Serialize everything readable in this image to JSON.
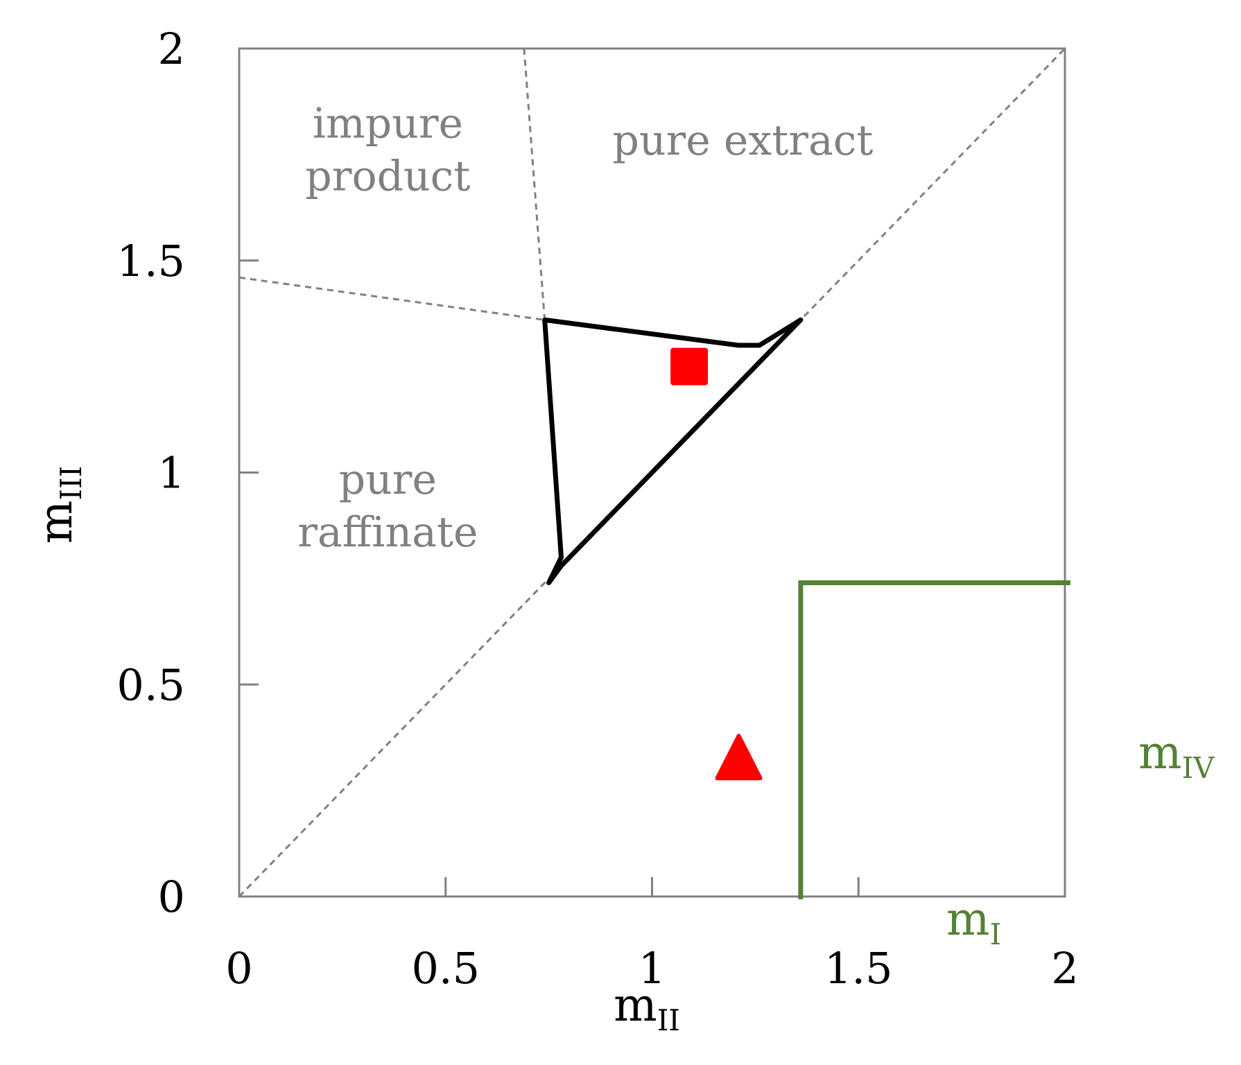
{
  "chart_data": {
    "type": "line",
    "title": "",
    "xlabel": {
      "main": "m",
      "sub": "II"
    },
    "ylabel": {
      "main": "m",
      "sub": "III"
    },
    "xlim": [
      0,
      2
    ],
    "ylim": [
      0,
      2
    ],
    "x_ticks": [
      0,
      0.5,
      1,
      1.5,
      2
    ],
    "x_tick_labels": [
      "0",
      "0.5",
      "1",
      "1.5",
      "2"
    ],
    "y_ticks": [
      0,
      0.5,
      1,
      1.5,
      2
    ],
    "y_tick_labels": [
      "0",
      "0.5",
      "1",
      "1.5",
      "2"
    ],
    "grid": false,
    "colors": {
      "axis": "#808080",
      "dashed": "#808080",
      "region_text": "#808080",
      "triangle": "#000000",
      "markers": "#ff0000",
      "m_bounds": "#548235"
    },
    "region_labels": [
      {
        "lines": [
          "impure",
          "product"
        ],
        "x": 0.36,
        "y": 1.79
      },
      {
        "lines": [
          "pure extract"
        ],
        "x": 1.22,
        "y": 1.75
      },
      {
        "lines": [
          "pure",
          "raffinate"
        ],
        "x": 0.36,
        "y": 0.95
      }
    ],
    "dashed_lines": [
      {
        "name": "diagonal",
        "points": [
          [
            0,
            0
          ],
          [
            2,
            2
          ]
        ]
      },
      {
        "name": "lower boundary",
        "points": [
          [
            0,
            1.46
          ],
          [
            0.74,
            1.36
          ]
        ]
      },
      {
        "name": "upper boundary",
        "points": [
          [
            0.69,
            2.0
          ],
          [
            0.74,
            1.36
          ]
        ]
      }
    ],
    "triangle": {
      "points": [
        [
          0.74,
          1.36
        ],
        [
          1.21,
          1.3
        ],
        [
          1.26,
          1.3
        ],
        [
          1.36,
          1.36
        ],
        [
          0.78,
          0.78
        ],
        [
          0.75,
          0.74
        ],
        [
          0.78,
          0.8
        ],
        [
          0.74,
          1.36
        ]
      ]
    },
    "markers": [
      {
        "shape": "square",
        "x": 1.09,
        "y": 1.25
      },
      {
        "shape": "triangle",
        "x": 1.21,
        "y": 0.32
      }
    ],
    "m_bounds": {
      "mI": {
        "label_main": "m",
        "label_sub": "I",
        "value": 1.36
      },
      "mIV": {
        "label_main": "m",
        "label_sub": "IV",
        "value": 0.74
      }
    }
  }
}
